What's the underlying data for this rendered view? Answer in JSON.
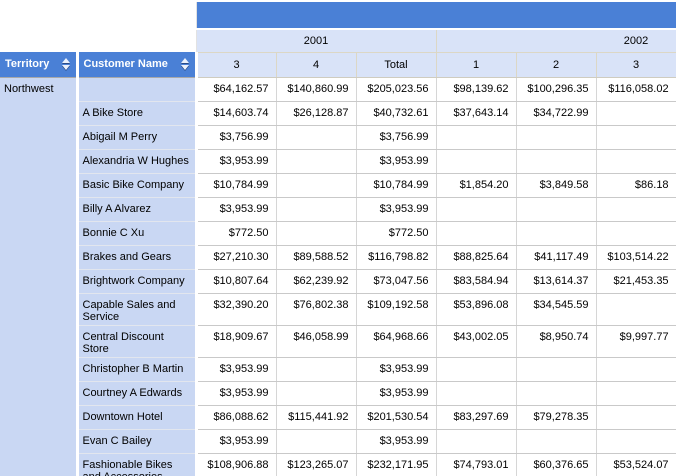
{
  "colors": {
    "header_blue": "#4a80d6",
    "header_light_blue": "#d9e3f8",
    "row_label_blue": "#c9d7f3",
    "grid_line_gray": "#c9c9c9",
    "header_separator_tan": "#dcd7c5"
  },
  "table": {
    "row_headers": [
      {
        "label": "Territory"
      },
      {
        "label": "Customer Name"
      }
    ],
    "year_groups": [
      {
        "label": "2001",
        "quarters": [
          "3",
          "4",
          "Total"
        ]
      },
      {
        "label": "2002",
        "quarters": [
          "1",
          "2",
          "3"
        ]
      }
    ],
    "rows": [
      {
        "territory": "Northwest",
        "customer": "",
        "values": [
          "$64,162.57",
          "$140,860.99",
          "$205,023.56",
          "$98,139.62",
          "$100,296.35",
          "$116,058.02"
        ]
      },
      {
        "customer": "A Bike Store",
        "values": [
          "$14,603.74",
          "$26,128.87",
          "$40,732.61",
          "$37,643.14",
          "$34,722.99",
          ""
        ]
      },
      {
        "customer": "Abigail M Perry",
        "values": [
          "$3,756.99",
          "",
          "$3,756.99",
          "",
          "",
          ""
        ]
      },
      {
        "customer": "Alexandria W Hughes",
        "values": [
          "$3,953.99",
          "",
          "$3,953.99",
          "",
          "",
          ""
        ]
      },
      {
        "customer": "Basic Bike Company",
        "values": [
          "$10,784.99",
          "",
          "$10,784.99",
          "$1,854.20",
          "$3,849.58",
          "$86.18"
        ]
      },
      {
        "customer": "Billy A Alvarez",
        "values": [
          "$3,953.99",
          "",
          "$3,953.99",
          "",
          "",
          ""
        ]
      },
      {
        "customer": "Bonnie C Xu",
        "values": [
          "$772.50",
          "",
          "$772.50",
          "",
          "",
          ""
        ]
      },
      {
        "customer": "Brakes and Gears",
        "values": [
          "$27,210.30",
          "$89,588.52",
          "$116,798.82",
          "$88,825.64",
          "$41,117.49",
          "$103,514.22"
        ]
      },
      {
        "customer": "Brightwork Company",
        "values": [
          "$10,807.64",
          "$62,239.92",
          "$73,047.56",
          "$83,584.94",
          "$13,614.37",
          "$21,453.35"
        ]
      },
      {
        "customer": "Capable Sales and Service",
        "values": [
          "$32,390.20",
          "$76,802.38",
          "$109,192.58",
          "$53,896.08",
          "$34,545.59",
          ""
        ]
      },
      {
        "customer": "Central Discount Store",
        "values": [
          "$18,909.67",
          "$46,058.99",
          "$64,968.66",
          "$43,002.05",
          "$8,950.74",
          "$9,997.77"
        ]
      },
      {
        "customer": "Christopher B Martin",
        "values": [
          "$3,953.99",
          "",
          "$3,953.99",
          "",
          "",
          ""
        ]
      },
      {
        "customer": "Courtney A Edwards",
        "values": [
          "$3,953.99",
          "",
          "$3,953.99",
          "",
          "",
          ""
        ]
      },
      {
        "customer": "Downtown Hotel",
        "values": [
          "$86,088.62",
          "$115,441.92",
          "$201,530.54",
          "$83,297.69",
          "$79,278.35",
          ""
        ]
      },
      {
        "customer": "Evan C Bailey",
        "values": [
          "$3,953.99",
          "",
          "$3,953.99",
          "",
          "",
          ""
        ]
      },
      {
        "customer": "Fashionable Bikes and Accessories",
        "values": [
          "$108,906.88",
          "$123,265.07",
          "$232,171.95",
          "$74,793.01",
          "$60,376.65",
          "$53,524.07"
        ]
      }
    ]
  }
}
